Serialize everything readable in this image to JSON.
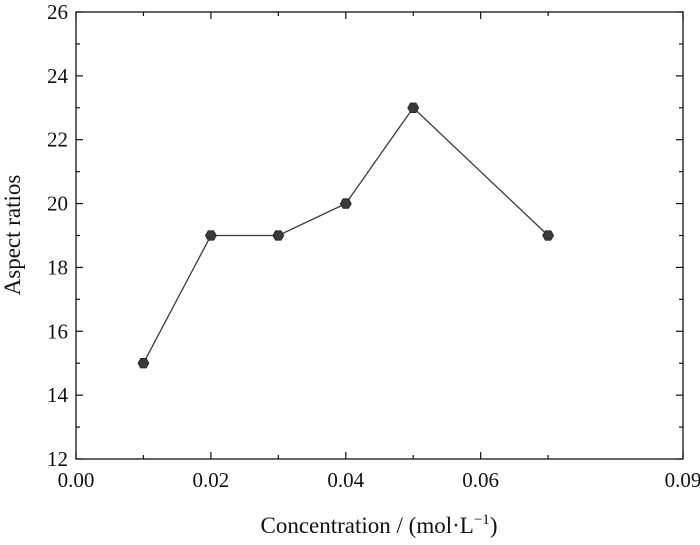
{
  "chart_data": {
    "type": "line",
    "title": "",
    "xlabel": {
      "main": "Concentration / (mol·L",
      "sup": "−1",
      "end": ")"
    },
    "ylabel": "Aspect ratios",
    "xlim": [
      0.0,
      0.09
    ],
    "ylim": [
      12,
      26
    ],
    "xticks": [
      "0.00",
      "0.02",
      "0.04",
      "0.06",
      "0.09"
    ],
    "xtick_values": [
      0.0,
      0.02,
      0.04,
      0.06,
      0.09
    ],
    "x_minor_ticks": [
      0.01,
      0.03,
      0.05,
      0.07
    ],
    "yticks": [
      "12",
      "14",
      "16",
      "18",
      "20",
      "22",
      "24",
      "26"
    ],
    "ytick_values": [
      12,
      14,
      16,
      18,
      20,
      22,
      24,
      26
    ],
    "y_minor_ticks": [
      13,
      15,
      17,
      19,
      21,
      23,
      25
    ],
    "grid": false,
    "legend": "none",
    "series": [
      {
        "x": [
          0.01,
          0.02,
          0.03,
          0.04,
          0.05,
          0.07
        ],
        "values": [
          15,
          19,
          19,
          20,
          23,
          19
        ],
        "marker": "hexagon",
        "color": "#3a3a3a"
      }
    ]
  }
}
